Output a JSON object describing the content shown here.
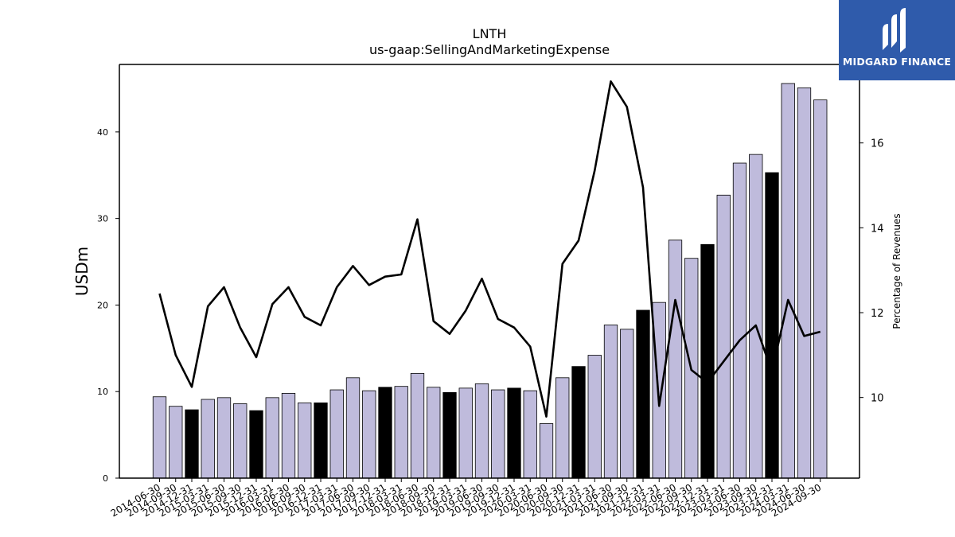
{
  "brand": {
    "name": "MIDGARD FINANCE",
    "bg_color": "#2f5bab"
  },
  "colors": {
    "bar": "#bfbbdc",
    "bar_highlight": "#000000",
    "line": "#000000"
  },
  "chart_data": {
    "type": "bar",
    "title": "LNTH",
    "subtitle": "us-gaap:SellingAndMarketingExpense",
    "ylabel": "USDm",
    "y2label": "Percentage of Revenues",
    "ylim": [
      0,
      47.8
    ],
    "y2lim": [
      8.1,
      17.85
    ],
    "yticks": [
      0,
      10,
      20,
      30,
      40
    ],
    "y2ticks": [
      10,
      12,
      14,
      16
    ],
    "categories": [
      "2014-06-30",
      "2014-09-30",
      "2014-12-31",
      "2015-03-31",
      "2015-06-30",
      "2015-09-30",
      "2015-12-31",
      "2016-03-31",
      "2016-06-30",
      "2016-09-30",
      "2016-12-31",
      "2017-03-31",
      "2017-06-30",
      "2017-09-30",
      "2017-12-31",
      "2018-03-31",
      "2018-06-30",
      "2018-09-30",
      "2018-12-31",
      "2019-03-31",
      "2019-06-30",
      "2019-09-30",
      "2019-12-31",
      "2020-03-31",
      "2020-06-30",
      "2020-09-30",
      "2020-12-31",
      "2021-03-31",
      "2021-06-30",
      "2021-09-30",
      "2021-12-31",
      "2022-03-31",
      "2022-06-30",
      "2022-09-30",
      "2022-12-31",
      "2023-03-31",
      "2023-06-30",
      "2023-09-30",
      "2023-12-31",
      "2024-03-31",
      "2024-06-30",
      "2024-09-30"
    ],
    "series": [
      {
        "values": [
          9.4,
          8.3,
          7.9,
          9.1,
          9.3,
          8.6,
          7.8,
          9.3,
          9.8,
          8.7,
          8.7,
          10.2,
          11.6,
          10.1,
          10.5,
          10.6,
          12.1,
          10.5,
          9.9,
          10.4,
          10.9,
          10.2,
          10.4,
          10.1,
          6.3,
          11.6,
          12.9,
          14.2,
          17.7,
          17.2,
          19.4,
          20.3,
          27.5,
          25.4,
          27.0,
          32.7,
          36.4,
          37.4,
          35.3,
          45.6,
          45.1,
          43.7
        ]
      },
      {
        "values": [
          12.45,
          11.0,
          10.25,
          12.15,
          12.6,
          11.65,
          10.95,
          12.2,
          12.6,
          11.9,
          11.7,
          12.6,
          13.1,
          12.65,
          12.85,
          12.9,
          14.2,
          11.8,
          11.5,
          12.05,
          12.8,
          11.85,
          11.65,
          11.2,
          9.55,
          13.15,
          13.7,
          15.35,
          17.45,
          16.85,
          14.95,
          9.8,
          12.3,
          10.65,
          10.35,
          10.85,
          11.35,
          11.7,
          10.6,
          12.3,
          11.45,
          11.55
        ]
      }
    ],
    "highlight_indices": [
      2,
      6,
      10,
      14,
      18,
      22,
      26,
      30,
      34,
      38
    ],
    "grid": false,
    "legend": "none"
  }
}
